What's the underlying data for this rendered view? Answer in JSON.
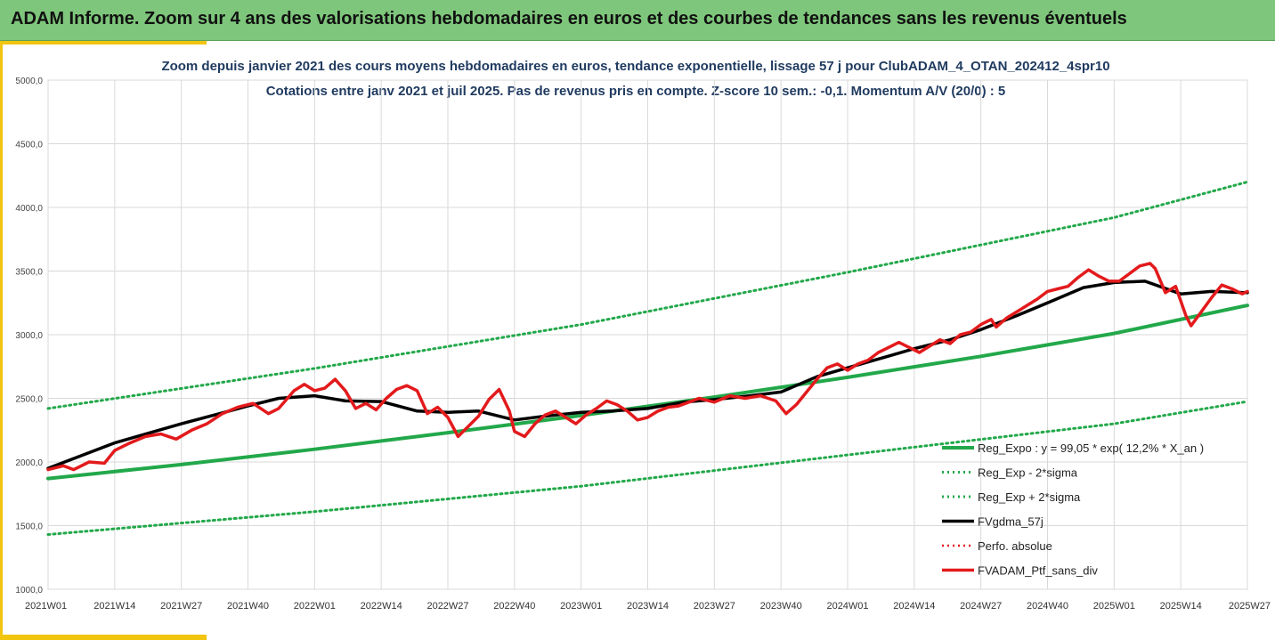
{
  "header": {
    "title": "ADAM Informe. Zoom sur 4 ans des valorisations hebdomadaires en euros et des courbes de tendances sans les revenus éventuels"
  },
  "colors": {
    "banner": "#7ec67b",
    "accent": "#f1c40f",
    "reg_expo": "#22a84a",
    "reg_sigma": "#22a84a",
    "mma": "#000000",
    "perfo": "#e31a1c",
    "portfolio": "#e31a1c",
    "title_text": "#1f3a5f"
  },
  "chart_data": {
    "type": "line",
    "title": "Zoom depuis janvier 2021 des cours moyens hebdomadaires  en euros, tendance exponentielle, lissage 57 j pour ClubADAM_4_OTAN_202412_4spr10",
    "subtitle": "Cotations entre janv 2021 et juil 2025. Pas de revenus pris en compte. Z-score 10 sem.: -0,1. Momentum A/V (20/0) : 5",
    "xlabel": "",
    "ylabel": "",
    "ylim": [
      1000,
      5000
    ],
    "xlim": [
      0,
      234
    ],
    "grid": true,
    "legend_position": "bottom-right",
    "y_ticks": [
      {
        "value": 1000,
        "label": "1000,0"
      },
      {
        "value": 1500,
        "label": "1500,0"
      },
      {
        "value": 2000,
        "label": "2000,0"
      },
      {
        "value": 2500,
        "label": "2500,0"
      },
      {
        "value": 3000,
        "label": "3000,0"
      },
      {
        "value": 3500,
        "label": "3500,0"
      },
      {
        "value": 4000,
        "label": "4000,0"
      },
      {
        "value": 4500,
        "label": "4500,0"
      },
      {
        "value": 5000,
        "label": "5000,0"
      }
    ],
    "x_ticks": [
      {
        "index": 0,
        "label": "2021W01"
      },
      {
        "index": 13,
        "label": "2021W14"
      },
      {
        "index": 26,
        "label": "2021W27"
      },
      {
        "index": 39,
        "label": "2021W40"
      },
      {
        "index": 52,
        "label": "2022W01"
      },
      {
        "index": 65,
        "label": "2022W14"
      },
      {
        "index": 78,
        "label": "2022W27"
      },
      {
        "index": 91,
        "label": "2022W40"
      },
      {
        "index": 104,
        "label": "2023W01"
      },
      {
        "index": 117,
        "label": "2023W14"
      },
      {
        "index": 130,
        "label": "2023W27"
      },
      {
        "index": 143,
        "label": "2023W40"
      },
      {
        "index": 156,
        "label": "2024W01"
      },
      {
        "index": 169,
        "label": "2024W14"
      },
      {
        "index": 182,
        "label": "2024W27"
      },
      {
        "index": 195,
        "label": "2024W40"
      },
      {
        "index": 208,
        "label": "2025W01"
      },
      {
        "index": 221,
        "label": "2025W14"
      },
      {
        "index": 234,
        "label": "2025W27"
      }
    ],
    "series": [
      {
        "name": "Reg_Expo : y = 99,05 * exp( 12,2% *  X_an )",
        "style": "solid-thick",
        "points": [
          [
            0,
            1870
          ],
          [
            26,
            1980
          ],
          [
            52,
            2100
          ],
          [
            78,
            2230
          ],
          [
            104,
            2365
          ],
          [
            130,
            2510
          ],
          [
            156,
            2665
          ],
          [
            182,
            2830
          ],
          [
            208,
            3010
          ],
          [
            234,
            3230
          ]
        ]
      },
      {
        "name": "Reg_Exp - 2*sigma",
        "style": "dotted",
        "points": [
          [
            0,
            1430
          ],
          [
            52,
            1610
          ],
          [
            104,
            1810
          ],
          [
            156,
            2055
          ],
          [
            208,
            2300
          ],
          [
            234,
            2475
          ]
        ]
      },
      {
        "name": "Reg_Exp + 2*sigma",
        "style": "dotted",
        "points": [
          [
            0,
            2420
          ],
          [
            52,
            2735
          ],
          [
            104,
            3080
          ],
          [
            156,
            3490
          ],
          [
            208,
            3920
          ],
          [
            234,
            4200
          ]
        ]
      },
      {
        "name": "FVgdma_57j",
        "style": "solid-thick",
        "points": [
          [
            0,
            1950
          ],
          [
            13,
            2150
          ],
          [
            26,
            2300
          ],
          [
            39,
            2440
          ],
          [
            45,
            2500
          ],
          [
            52,
            2520
          ],
          [
            58,
            2480
          ],
          [
            65,
            2475
          ],
          [
            72,
            2400
          ],
          [
            78,
            2390
          ],
          [
            84,
            2400
          ],
          [
            91,
            2330
          ],
          [
            97,
            2360
          ],
          [
            104,
            2390
          ],
          [
            110,
            2400
          ],
          [
            117,
            2420
          ],
          [
            124,
            2470
          ],
          [
            130,
            2490
          ],
          [
            137,
            2520
          ],
          [
            143,
            2550
          ],
          [
            150,
            2670
          ],
          [
            156,
            2740
          ],
          [
            163,
            2820
          ],
          [
            169,
            2890
          ],
          [
            176,
            2960
          ],
          [
            182,
            3040
          ],
          [
            189,
            3150
          ],
          [
            195,
            3250
          ],
          [
            202,
            3370
          ],
          [
            208,
            3410
          ],
          [
            214,
            3420
          ],
          [
            221,
            3320
          ],
          [
            227,
            3340
          ],
          [
            234,
            3330
          ]
        ]
      },
      {
        "name": "Perfo. absolue",
        "style": "dotted",
        "points": []
      },
      {
        "name": "FVADAM_Ptf_sans_div",
        "style": "solid-thick",
        "points": [
          [
            0,
            1940
          ],
          [
            3,
            1970
          ],
          [
            5,
            1940
          ],
          [
            8,
            2000
          ],
          [
            11,
            1990
          ],
          [
            13,
            2090
          ],
          [
            16,
            2150
          ],
          [
            19,
            2200
          ],
          [
            22,
            2220
          ],
          [
            25,
            2180
          ],
          [
            28,
            2250
          ],
          [
            31,
            2300
          ],
          [
            34,
            2380
          ],
          [
            37,
            2430
          ],
          [
            40,
            2460
          ],
          [
            43,
            2380
          ],
          [
            45,
            2420
          ],
          [
            48,
            2560
          ],
          [
            50,
            2610
          ],
          [
            52,
            2560
          ],
          [
            54,
            2580
          ],
          [
            56,
            2650
          ],
          [
            58,
            2560
          ],
          [
            60,
            2420
          ],
          [
            62,
            2460
          ],
          [
            64,
            2410
          ],
          [
            66,
            2500
          ],
          [
            68,
            2570
          ],
          [
            70,
            2600
          ],
          [
            72,
            2560
          ],
          [
            74,
            2380
          ],
          [
            76,
            2430
          ],
          [
            78,
            2350
          ],
          [
            80,
            2200
          ],
          [
            82,
            2280
          ],
          [
            84,
            2360
          ],
          [
            86,
            2490
          ],
          [
            88,
            2570
          ],
          [
            90,
            2400
          ],
          [
            91,
            2240
          ],
          [
            93,
            2200
          ],
          [
            95,
            2300
          ],
          [
            97,
            2370
          ],
          [
            99,
            2400
          ],
          [
            101,
            2350
          ],
          [
            103,
            2300
          ],
          [
            105,
            2370
          ],
          [
            107,
            2420
          ],
          [
            109,
            2480
          ],
          [
            111,
            2450
          ],
          [
            113,
            2400
          ],
          [
            115,
            2330
          ],
          [
            117,
            2350
          ],
          [
            119,
            2400
          ],
          [
            121,
            2430
          ],
          [
            123,
            2440
          ],
          [
            125,
            2470
          ],
          [
            127,
            2500
          ],
          [
            130,
            2470
          ],
          [
            133,
            2520
          ],
          [
            136,
            2500
          ],
          [
            139,
            2520
          ],
          [
            142,
            2480
          ],
          [
            144,
            2380
          ],
          [
            146,
            2450
          ],
          [
            148,
            2550
          ],
          [
            150,
            2650
          ],
          [
            152,
            2740
          ],
          [
            154,
            2770
          ],
          [
            156,
            2720
          ],
          [
            158,
            2770
          ],
          [
            160,
            2800
          ],
          [
            162,
            2860
          ],
          [
            164,
            2900
          ],
          [
            166,
            2940
          ],
          [
            168,
            2900
          ],
          [
            170,
            2860
          ],
          [
            172,
            2910
          ],
          [
            174,
            2960
          ],
          [
            176,
            2930
          ],
          [
            178,
            3000
          ],
          [
            180,
            3020
          ],
          [
            182,
            3080
          ],
          [
            184,
            3120
          ],
          [
            185,
            3060
          ],
          [
            187,
            3130
          ],
          [
            189,
            3180
          ],
          [
            191,
            3230
          ],
          [
            193,
            3280
          ],
          [
            195,
            3340
          ],
          [
            197,
            3360
          ],
          [
            199,
            3380
          ],
          [
            201,
            3450
          ],
          [
            203,
            3510
          ],
          [
            205,
            3460
          ],
          [
            207,
            3420
          ],
          [
            209,
            3420
          ],
          [
            211,
            3480
          ],
          [
            213,
            3540
          ],
          [
            215,
            3560
          ],
          [
            216,
            3520
          ],
          [
            218,
            3330
          ],
          [
            220,
            3380
          ],
          [
            222,
            3150
          ],
          [
            223,
            3070
          ],
          [
            225,
            3180
          ],
          [
            227,
            3290
          ],
          [
            229,
            3390
          ],
          [
            231,
            3360
          ],
          [
            233,
            3320
          ],
          [
            234,
            3340
          ]
        ]
      }
    ]
  }
}
